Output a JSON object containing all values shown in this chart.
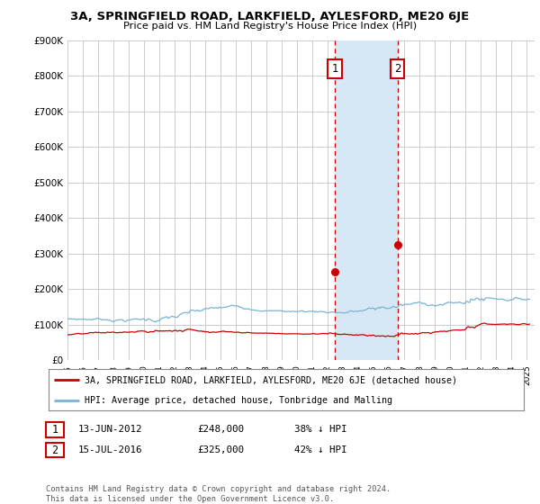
{
  "title": "3A, SPRINGFIELD ROAD, LARKFIELD, AYLESFORD, ME20 6JE",
  "subtitle": "Price paid vs. HM Land Registry's House Price Index (HPI)",
  "ylim": [
    0,
    900000
  ],
  "xlim_start": 1995.0,
  "xlim_end": 2025.5,
  "hpi_color": "#7ab3d4",
  "price_color": "#cc0000",
  "sale1_date": 2012.45,
  "sale1_price": 248000,
  "sale2_date": 2016.54,
  "sale2_price": 325000,
  "shade_color": "#d6e8f5",
  "legend_line1": "3A, SPRINGFIELD ROAD, LARKFIELD, AYLESFORD, ME20 6JE (detached house)",
  "legend_line2": "HPI: Average price, detached house, Tonbridge and Malling",
  "table_row1": [
    "1",
    "13-JUN-2012",
    "£248,000",
    "38% ↓ HPI"
  ],
  "table_row2": [
    "2",
    "15-JUL-2016",
    "£325,000",
    "42% ↓ HPI"
  ],
  "footer": "Contains HM Land Registry data © Crown copyright and database right 2024.\nThis data is licensed under the Open Government Licence v3.0.",
  "background_color": "#ffffff",
  "grid_color": "#cccccc"
}
